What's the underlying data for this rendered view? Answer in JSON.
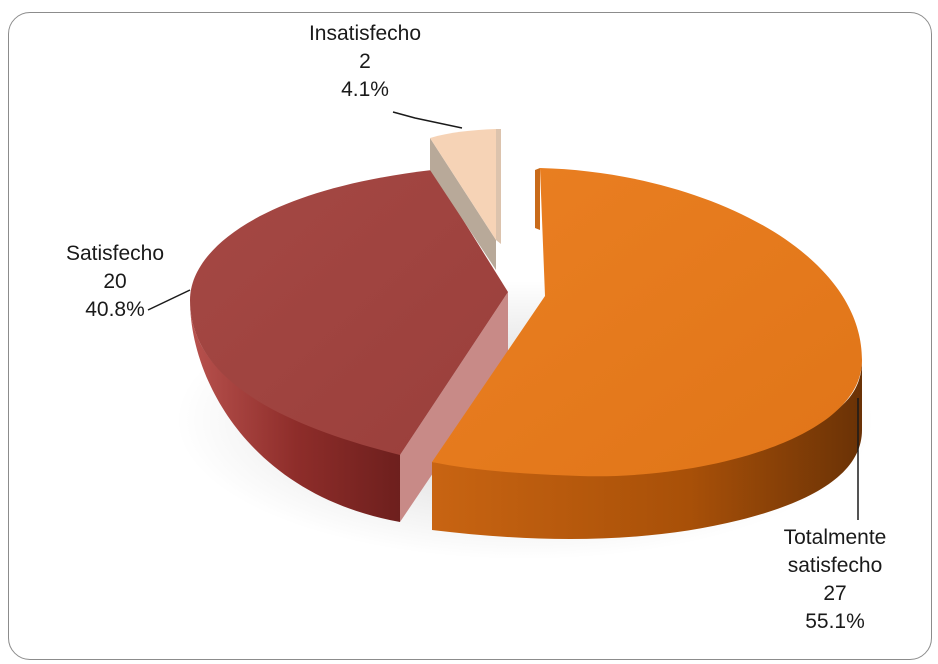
{
  "chart_data": {
    "type": "pie",
    "title": "",
    "three_d": true,
    "slices": [
      {
        "name": "Totalmente satisfecho",
        "value": 27,
        "percent_label": "55.1%",
        "color": "#e67e22"
      },
      {
        "name": "Satisfecho",
        "value": 20,
        "percent_label": "40.8%",
        "color": "#a0403c"
      },
      {
        "name": "Insatisfecho",
        "value": 2,
        "percent_label": "4.1%",
        "color": "#f6d3b6"
      }
    ],
    "labels": {
      "insatisfecho": {
        "line1": "Insatisfecho",
        "line2": "2",
        "line3": "4.1%"
      },
      "satisfecho": {
        "line1": "Satisfecho",
        "line2": "20",
        "line3": "40.8%"
      },
      "totalmente": {
        "line1": "Totalmente",
        "line2": "satisfecho",
        "line3": "27",
        "line4": "55.1%"
      }
    }
  }
}
